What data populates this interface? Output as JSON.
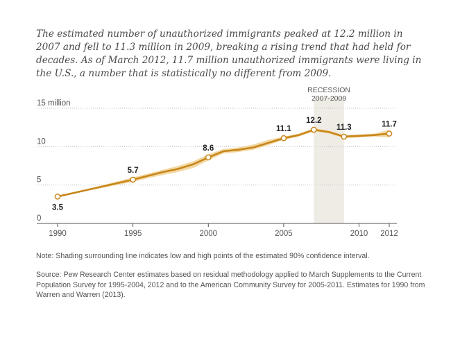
{
  "subtitle": "The estimated number of unauthorized immigrants peaked at 12.2 million in 2007 and fell to 11.3 million in 2009, breaking a rising trend that had held for decades. As of March 2012, 11.7 million unauthorized immigrants were living in the U.S., a number that is statistically no different from 2009.",
  "note": "Note: Shading surrounding line indicates low and high points of the estimated 90% confidence interval.",
  "source": "Source: Pew Research Center estimates based on residual methodology applied to March Supplements to the Current Population Survey for 1995-2004, 2012 and to the American Community Survey for 2005-2011. Estimates for 1990 from Warren and Warren (2013).",
  "colors": {
    "line": "#c8861a",
    "confidence_band": "#f2d9a6",
    "recession_band": "#efece6",
    "marker_fill": "#ffffff",
    "gridline": "#bdbdbd",
    "axis": "#555555"
  },
  "chart_data": {
    "type": "line",
    "title": "",
    "xlabel": "",
    "ylabel": "",
    "xlim": [
      1990,
      2012
    ],
    "ylim": [
      0,
      15
    ],
    "x_ticks": [
      1990,
      1995,
      2000,
      2005,
      2010,
      2012
    ],
    "x_tick_labels": [
      "1990",
      "1995",
      "2000",
      "2005",
      "2010",
      "2012"
    ],
    "y_ticks": [
      0,
      5,
      10,
      15
    ],
    "y_tick_labels": [
      "0",
      "5",
      "10",
      "15 million"
    ],
    "grid": "horizontal dotted",
    "series": [
      {
        "x": [
          1990,
          1995,
          1996,
          1997,
          1998,
          1999,
          2000,
          2001,
          2002,
          2003,
          2004,
          2005,
          2006,
          2007,
          2008,
          2009,
          2010,
          2011,
          2012
        ],
        "values": [
          3.5,
          5.7,
          6.2,
          6.7,
          7.1,
          7.7,
          8.6,
          9.4,
          9.6,
          9.9,
          10.5,
          11.1,
          11.5,
          12.2,
          11.9,
          11.3,
          11.4,
          11.5,
          11.7
        ],
        "low": [
          3.5,
          5.4,
          5.9,
          6.3,
          6.7,
          7.2,
          8.2,
          9.1,
          9.3,
          9.6,
          10.2,
          10.9,
          11.3,
          12.0,
          11.7,
          11.1,
          11.2,
          11.3,
          11.2
        ],
        "high": [
          3.5,
          6.0,
          6.5,
          7.0,
          7.5,
          8.1,
          9.0,
          9.7,
          9.9,
          10.3,
          10.9,
          11.3,
          11.7,
          12.4,
          12.1,
          11.5,
          11.6,
          11.7,
          12.2
        ]
      }
    ],
    "labeled_points": [
      {
        "x": 1990,
        "y": 3.5,
        "label": "3.5",
        "position": "below"
      },
      {
        "x": 1995,
        "y": 5.7,
        "label": "5.7",
        "position": "above"
      },
      {
        "x": 2000,
        "y": 8.6,
        "label": "8.6",
        "position": "above"
      },
      {
        "x": 2005,
        "y": 11.1,
        "label": "11.1",
        "position": "above"
      },
      {
        "x": 2007,
        "y": 12.2,
        "label": "12.2",
        "position": "above"
      },
      {
        "x": 2009,
        "y": 11.3,
        "label": "11.3",
        "position": "above"
      },
      {
        "x": 2012,
        "y": 11.7,
        "label": "11.7",
        "position": "above"
      }
    ],
    "shaded_region": {
      "label_line1": "RECESSION",
      "label_line2": "2007-2009",
      "x_start": 2007,
      "x_end": 2009
    }
  }
}
